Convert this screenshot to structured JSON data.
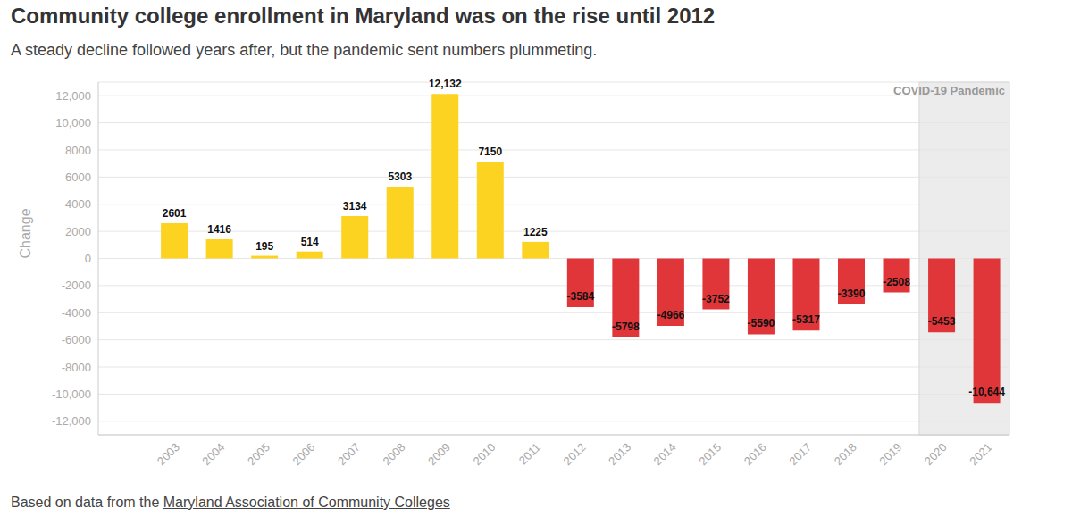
{
  "chart_data": {
    "type": "bar",
    "title": "Community college enrollment in Maryland was on the rise until 2012",
    "subtitle": "A steady decline followed years after, but the pandemic sent numbers plummeting.",
    "y_label": "Change",
    "source_text": "Based on data from the",
    "source_link": "Maryland Association of Community Colleges",
    "categories": [
      "2003",
      "2004",
      "2005",
      "2006",
      "2007",
      "2008",
      "2009",
      "2010",
      "2011",
      "2012",
      "2013",
      "2014",
      "2015",
      "2016",
      "2017",
      "2018",
      "2019",
      "2020",
      "2021"
    ],
    "values": [
      2601,
      1416,
      195,
      514,
      3134,
      5303,
      12132,
      7150,
      1225,
      -3584,
      -5798,
      -4966,
      -3752,
      -5590,
      -5317,
      -3390,
      -2508,
      -5453,
      -10644
    ],
    "value_labels": [
      "2601",
      "1416",
      "195",
      "514",
      "3134",
      "5303",
      "12,132",
      "7150",
      "1225",
      "-3584",
      "-5798",
      "-4966",
      "-3752",
      "-5590",
      "-5317",
      "-3390",
      "-2508",
      "-5453",
      "-10,644"
    ],
    "colors": [
      "#fdd321",
      "#fdd321",
      "#fdd321",
      "#fdd321",
      "#fdd321",
      "#fdd321",
      "#fdd321",
      "#fdd321",
      "#fdd321",
      "#e0363a",
      "#e0363a",
      "#e0363a",
      "#e0363a",
      "#e0363a",
      "#e0363a",
      "#e0363a",
      "#e0363a",
      "#e0363a",
      "#e0363a"
    ],
    "ylim": [
      -13000,
      13000
    ],
    "yticks": [
      {
        "value": 12000,
        "label": "12,000"
      },
      {
        "value": 10000,
        "label": "10,000"
      },
      8000,
      6000,
      4000,
      2000,
      0,
      -2000,
      -4000,
      -6000,
      -8000,
      {
        "value": -10000,
        "label": "-10,000"
      },
      {
        "value": -12000,
        "label": "-12,000"
      }
    ],
    "grid": true,
    "data_labels": true,
    "annotations": [
      {
        "text": "COVID-19 Pandemic",
        "from": "2020",
        "to": "2021"
      }
    ]
  }
}
